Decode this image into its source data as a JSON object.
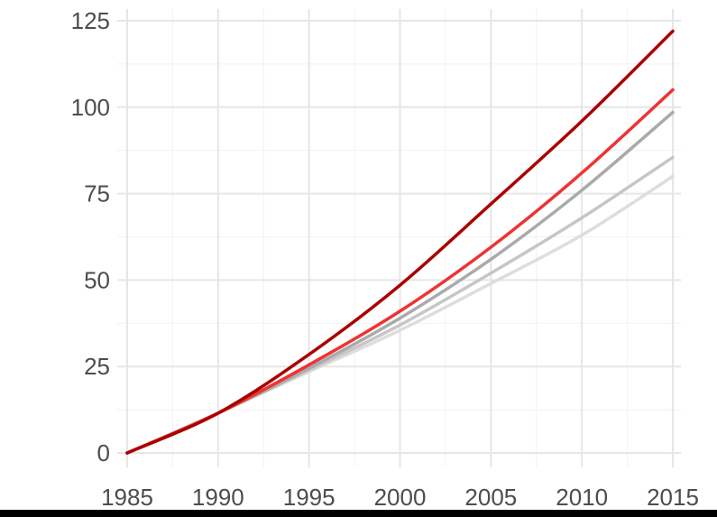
{
  "chart_data": {
    "type": "line",
    "title": "",
    "xlabel": "",
    "ylabel": "",
    "xlim": [
      1985,
      2015
    ],
    "ylim": [
      0,
      125
    ],
    "grid": true,
    "legend": "none",
    "x_ticks": [
      1985,
      1990,
      1995,
      2000,
      2005,
      2010,
      2015
    ],
    "y_ticks": [
      0,
      25,
      50,
      75,
      100,
      125
    ],
    "x_tick_labels": [
      "1985",
      "1990",
      "1995",
      "2000",
      "2005",
      "2010",
      "2015"
    ],
    "y_tick_labels": [
      "0",
      "25",
      "50",
      "75",
      "100",
      "125"
    ],
    "x": [
      1985,
      1990,
      1995,
      2000,
      2005,
      2010,
      2015
    ],
    "series": [
      {
        "color": "#dddddd",
        "values": [
          0,
          11.5,
          23.5,
          35.5,
          49,
          63,
          80
        ]
      },
      {
        "color": "#c6c6c6",
        "values": [
          0,
          11.5,
          24,
          37,
          52,
          68,
          85.5
        ]
      },
      {
        "color": "#aaaaaa",
        "values": [
          0,
          11.5,
          24.5,
          39,
          56,
          76,
          98.5
        ]
      },
      {
        "color": "#ee3333",
        "values": [
          0,
          11.5,
          25.5,
          41,
          59.5,
          81,
          105
        ]
      },
      {
        "color": "#aa0000",
        "values": [
          0,
          11.5,
          28.5,
          48.5,
          72,
          96,
          122
        ]
      }
    ]
  }
}
